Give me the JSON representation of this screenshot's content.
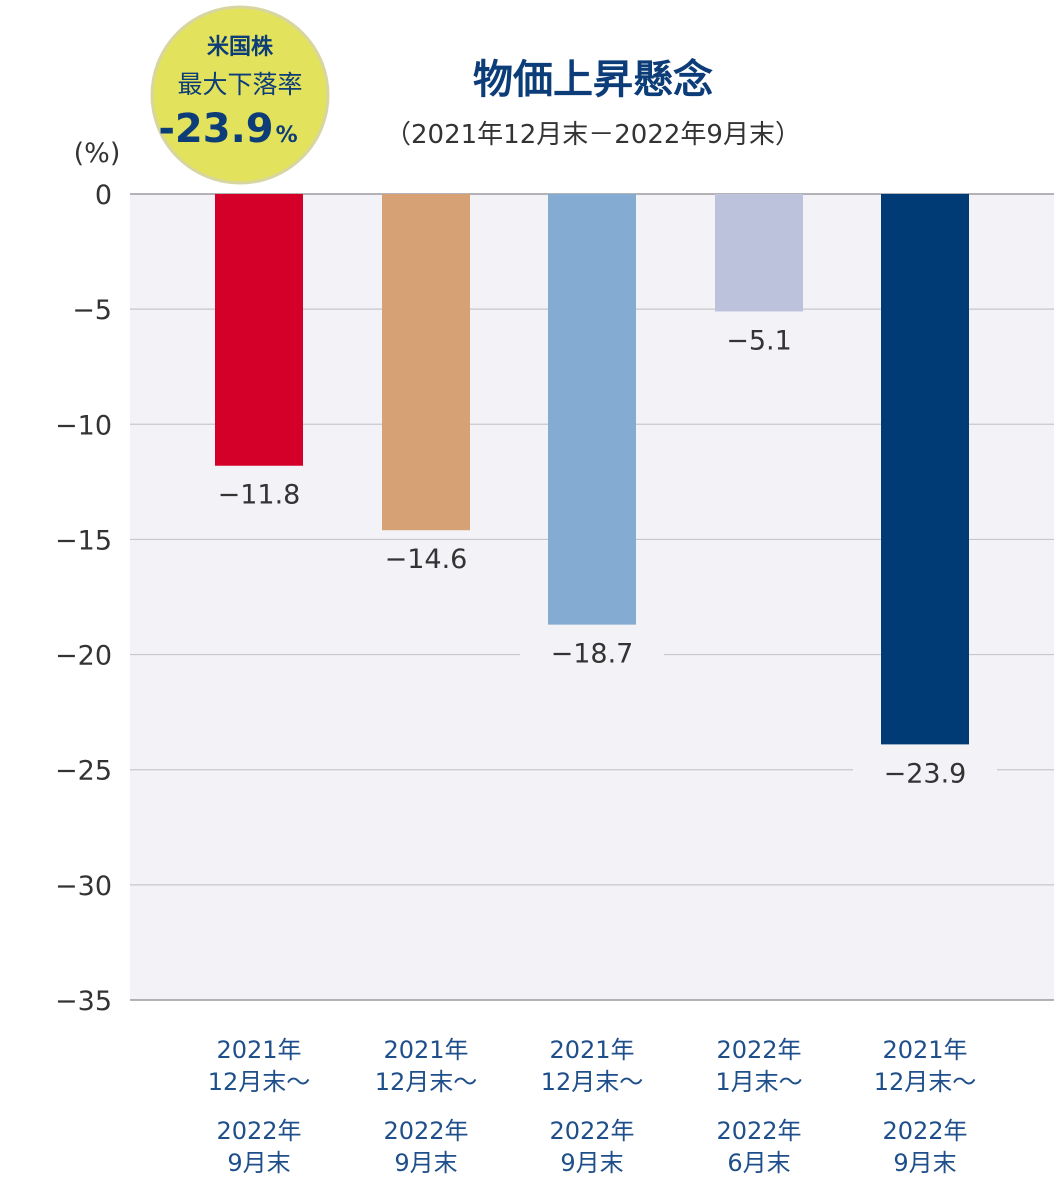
{
  "chart_data": {
    "type": "bar",
    "title": "物価上昇懸念",
    "subtitle": "（2021年12月末－2022年9月末）",
    "unit_label": "(%)",
    "ylim": [
      -35,
      0
    ],
    "y_ticks": [
      {
        "value": 0,
        "label": "0"
      },
      {
        "value": -5,
        "label": "−5"
      },
      {
        "value": -10,
        "label": "−10"
      },
      {
        "value": -15,
        "label": "−15"
      },
      {
        "value": -20,
        "label": "−20"
      },
      {
        "value": -25,
        "label": "−25"
      },
      {
        "value": -30,
        "label": "−30"
      },
      {
        "value": -35,
        "label": "−35"
      }
    ],
    "grid": true,
    "bars": [
      {
        "value": -11.8,
        "data_label": "−11.8",
        "color": "#d50029",
        "category_lines": [
          "2021年",
          "12月末～",
          "2022年",
          "9月末"
        ]
      },
      {
        "value": -14.6,
        "data_label": "−14.6",
        "color": "#d6a175",
        "category_lines": [
          "2021年",
          "12月末～",
          "2022年",
          "9月末"
        ]
      },
      {
        "value": -18.7,
        "data_label": "−18.7",
        "color": "#84acd2",
        "category_lines": [
          "2021年",
          "12月末～",
          "2022年",
          "9月末"
        ]
      },
      {
        "value": -5.1,
        "data_label": "−5.1",
        "color": "#bcc2db",
        "category_lines": [
          "2022年",
          "1月末～",
          "2022年",
          "6月末"
        ]
      },
      {
        "value": -23.9,
        "data_label": "−23.9",
        "color": "#003b75",
        "category_lines": [
          "2021年",
          "12月末～",
          "2022年",
          "9月末"
        ]
      }
    ]
  },
  "badge": {
    "line1": "米国株",
    "line2": "最大下落率",
    "value": "-23.9",
    "unit": "%"
  },
  "colors": {
    "title": "#0d3d78",
    "axis_text": "#333333",
    "category_text": "#1f4f8a",
    "plot_bg": "#f2f2f7",
    "gridline": "#c8c8cc",
    "badge_fill": "#e3e25c",
    "badge_stroke": "#d8d6a0"
  }
}
